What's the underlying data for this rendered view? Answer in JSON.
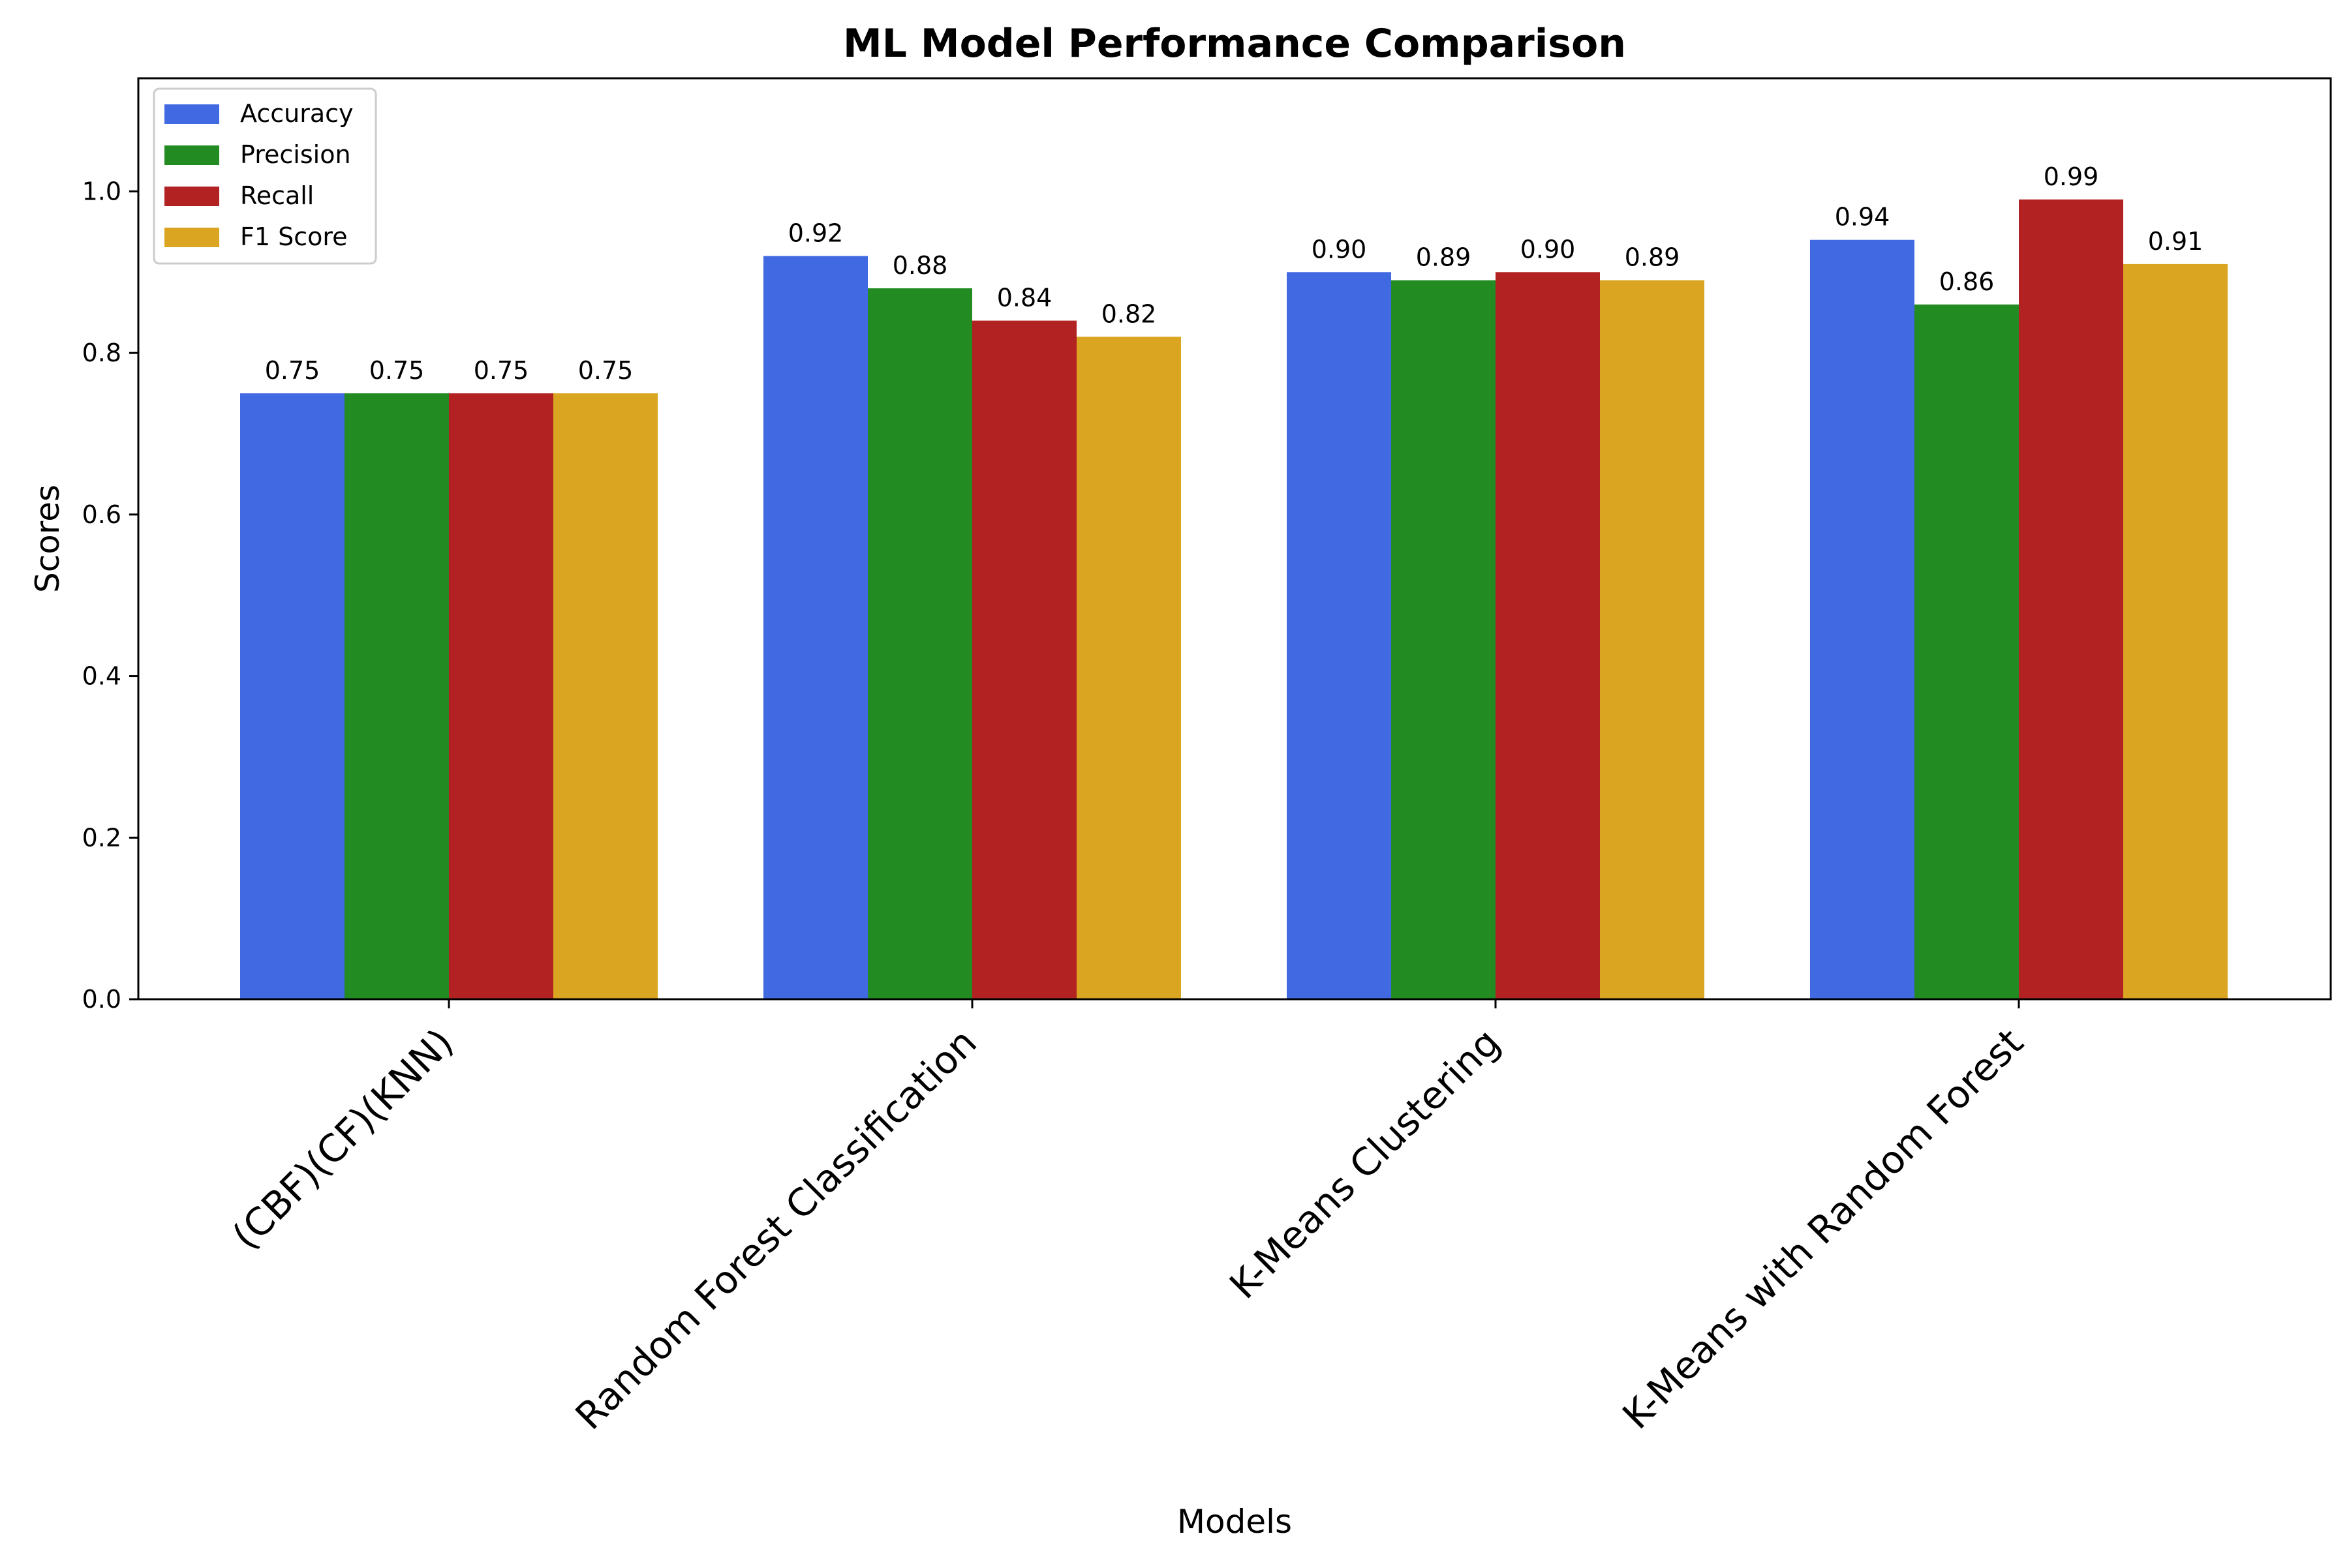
{
  "chart_data": {
    "type": "bar",
    "title": "ML Model Performance Comparison",
    "xlabel": "Models",
    "ylabel": "Scores",
    "categories": [
      "(CBF)(CF)(KNN)",
      "Random Forest Classification",
      "K-Means Clustering",
      "K-Means with Random Forest"
    ],
    "series": [
      {
        "name": "Accuracy",
        "color": "#4169E1",
        "values": [
          0.75,
          0.92,
          0.9,
          0.94
        ]
      },
      {
        "name": "Precision",
        "color": "#228B22",
        "values": [
          0.75,
          0.88,
          0.89,
          0.86
        ]
      },
      {
        "name": "Recall",
        "color": "#B22222",
        "values": [
          0.75,
          0.84,
          0.9,
          0.99
        ]
      },
      {
        "name": "F1 Score",
        "color": "#DAA520",
        "values": [
          0.75,
          0.82,
          0.89,
          0.91
        ]
      }
    ],
    "ylim": [
      0,
      1.14
    ],
    "yticks": [
      "0.0",
      "0.2",
      "0.4",
      "0.6",
      "0.8",
      "1.0"
    ],
    "data_labels": [
      [
        "0.75",
        "0.92",
        "0.90",
        "0.94"
      ],
      [
        "0.75",
        "0.88",
        "0.89",
        "0.86"
      ],
      [
        "0.75",
        "0.84",
        "0.90",
        "0.99"
      ],
      [
        "0.75",
        "0.82",
        "0.89",
        "0.91"
      ]
    ],
    "legend_position": "top-left",
    "grid": false
  }
}
